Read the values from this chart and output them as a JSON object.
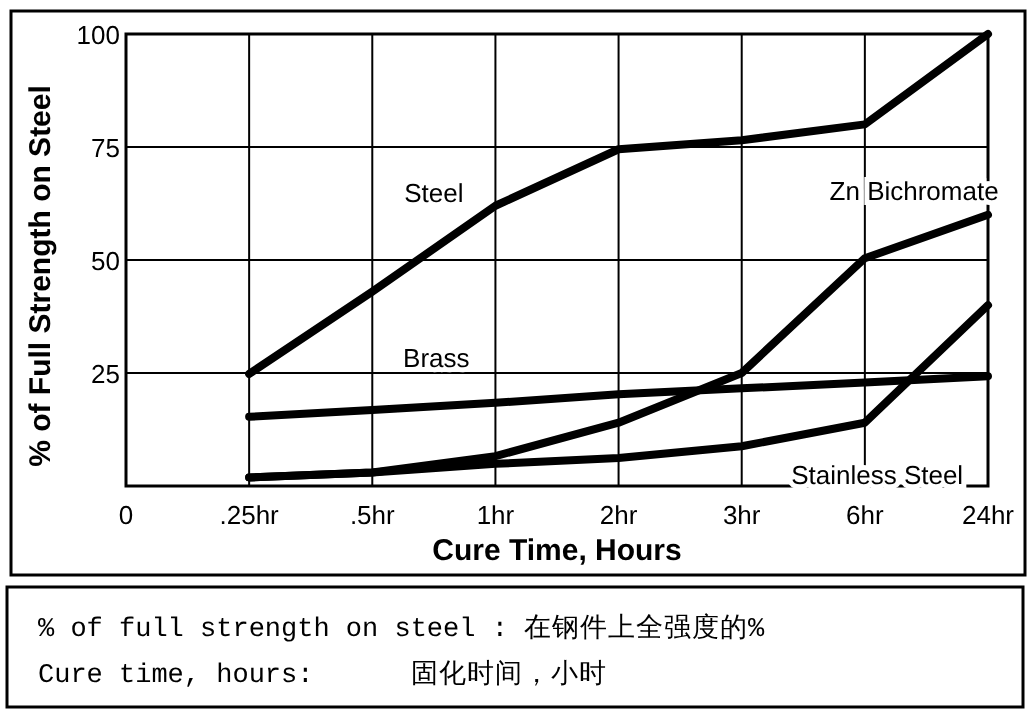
{
  "chart_data": {
    "type": "line",
    "xlabel": "Cure Time, Hours",
    "ylabel": "% of Full Strength on Steel",
    "categories": [
      "0",
      ".25hr",
      ".5hr",
      "1hr",
      "2hr",
      "3hr",
      "6hr",
      "24hr"
    ],
    "ylim": [
      0,
      100
    ],
    "yticks": [
      25,
      50,
      75,
      100
    ],
    "grid": true,
    "marker": "none",
    "line_style": "solid",
    "series": [
      {
        "name": "Steel",
        "color": "#000000",
        "values": [
          null,
          24.8,
          43,
          62,
          74.5,
          76.5,
          80,
          100
        ]
      },
      {
        "name": "Brass",
        "color": "#000000",
        "values": [
          null,
          15.3,
          16.8,
          18.4,
          20.3,
          21.6,
          22.9,
          24.3
        ]
      },
      {
        "name": "Zn Bichromate",
        "color": "#000000",
        "values": [
          null,
          1.9,
          3,
          6.6,
          14,
          25,
          50.4,
          60
        ]
      },
      {
        "name": "Stainless Steel",
        "color": "#000000",
        "values": [
          null,
          1.9,
          3,
          4.9,
          6.2,
          8.8,
          14,
          40
        ]
      }
    ],
    "annotations": [
      "% of full strength on steel : 在钢件上全强度的%",
      "Cure time, hours:      固化时间，小时"
    ]
  }
}
